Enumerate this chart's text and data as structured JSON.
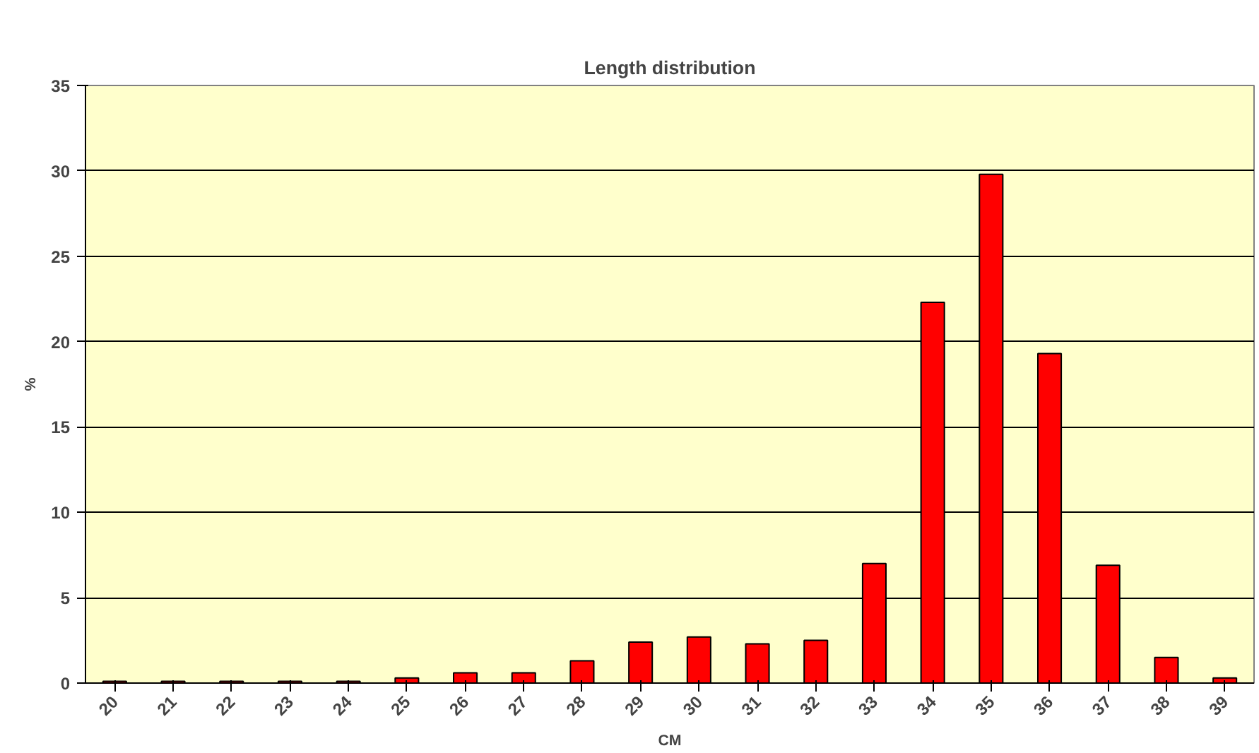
{
  "chart_data": {
    "type": "bar",
    "title": "Length distribution",
    "xlabel": "CM",
    "ylabel": "%",
    "categories": [
      "20",
      "21",
      "22",
      "23",
      "24",
      "25",
      "26",
      "27",
      "28",
      "29",
      "30",
      "31",
      "32",
      "33",
      "34",
      "35",
      "36",
      "37",
      "38",
      "39"
    ],
    "values": [
      0.1,
      0.1,
      0.1,
      0.1,
      0.1,
      0.3,
      0.6,
      0.6,
      1.3,
      2.4,
      2.7,
      2.3,
      2.5,
      7.0,
      22.3,
      29.8,
      19.3,
      6.9,
      1.5,
      0.3
    ],
    "color": "#ff0000",
    "ylim": [
      0,
      35
    ],
    "yticks": [
      0,
      5,
      10,
      15,
      20,
      25,
      30,
      35
    ],
    "grid": "y"
  }
}
